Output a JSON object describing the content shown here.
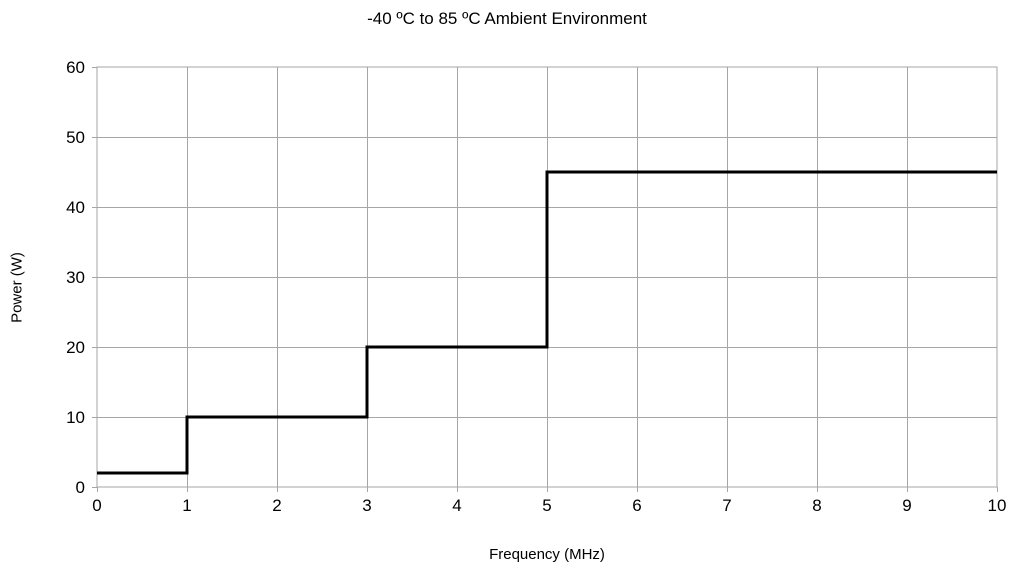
{
  "chart_data": {
    "type": "line",
    "title": "-40 ºC to 85 ºC Ambient Environment",
    "xlabel": "Frequency (MHz)",
    "ylabel": "Power (W)",
    "xlim": [
      0,
      10
    ],
    "ylim": [
      0,
      60
    ],
    "x_ticks": [
      0,
      1,
      2,
      3,
      4,
      5,
      6,
      7,
      8,
      9,
      10
    ],
    "y_ticks": [
      0,
      10,
      20,
      30,
      40,
      50,
      60
    ],
    "grid": true,
    "series": [
      {
        "color": "#000000",
        "x": [
          0,
          1,
          1,
          3,
          3,
          5,
          5,
          10
        ],
        "y": [
          2,
          2,
          10,
          10,
          20,
          20,
          45,
          45
        ]
      }
    ]
  }
}
